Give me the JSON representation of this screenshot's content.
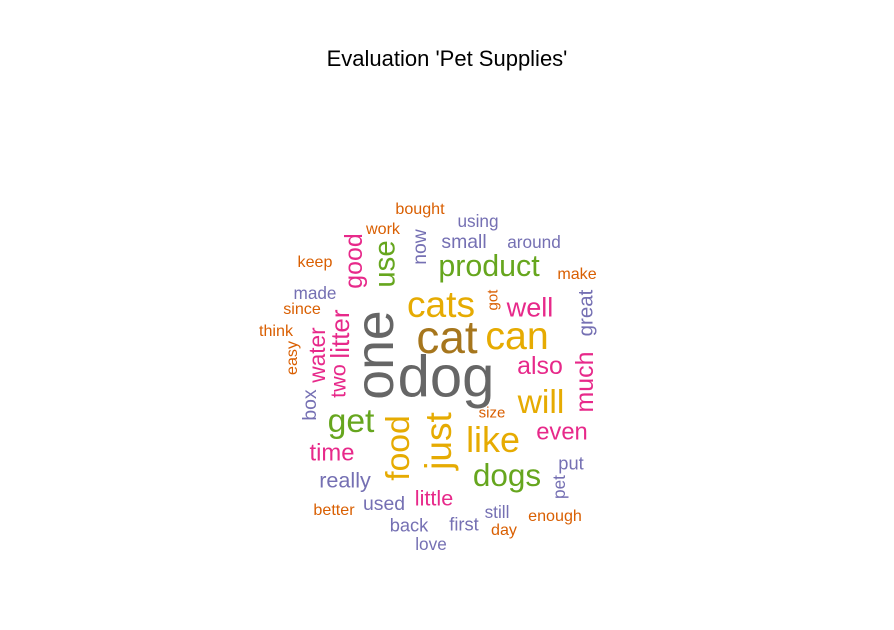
{
  "chart_data": {
    "type": "wordcloud",
    "title": "Evaluation 'Pet Supplies'",
    "palette": {
      "gray": "#666666",
      "brown": "#a6761d",
      "gold": "#e6ab02",
      "green": "#66a61e",
      "pink": "#e7298a",
      "purple": "#7570b3",
      "orange": "#d95f02"
    },
    "words": [
      {
        "text": "dog",
        "weight": 100,
        "color": "gray"
      },
      {
        "text": "one",
        "weight": 92,
        "color": "gray",
        "rotated": true
      },
      {
        "text": "cat",
        "weight": 78,
        "color": "brown"
      },
      {
        "text": "can",
        "weight": 66,
        "color": "gold"
      },
      {
        "text": "cats",
        "weight": 62,
        "color": "gold"
      },
      {
        "text": "just",
        "weight": 62,
        "color": "gold",
        "rotated": true
      },
      {
        "text": "like",
        "weight": 60,
        "color": "gold"
      },
      {
        "text": "food",
        "weight": 56,
        "color": "gold",
        "rotated": true
      },
      {
        "text": "will",
        "weight": 56,
        "color": "gold"
      },
      {
        "text": "get",
        "weight": 56,
        "color": "green"
      },
      {
        "text": "dogs",
        "weight": 52,
        "color": "green"
      },
      {
        "text": "product",
        "weight": 50,
        "color": "green"
      },
      {
        "text": "use",
        "weight": 48,
        "color": "green",
        "rotated": true
      },
      {
        "text": "well",
        "weight": 44,
        "color": "pink"
      },
      {
        "text": "litter",
        "weight": 42,
        "color": "pink",
        "rotated": true
      },
      {
        "text": "good",
        "weight": 40,
        "color": "pink",
        "rotated": true
      },
      {
        "text": "also",
        "weight": 40,
        "color": "pink"
      },
      {
        "text": "much",
        "weight": 40,
        "color": "pink",
        "rotated": true
      },
      {
        "text": "even",
        "weight": 38,
        "color": "pink"
      },
      {
        "text": "time",
        "weight": 38,
        "color": "pink"
      },
      {
        "text": "water",
        "weight": 36,
        "color": "pink",
        "rotated": true
      },
      {
        "text": "two",
        "weight": 34,
        "color": "pink",
        "rotated": true
      },
      {
        "text": "little",
        "weight": 34,
        "color": "pink"
      },
      {
        "text": "really",
        "weight": 34,
        "color": "purple"
      },
      {
        "text": "great",
        "weight": 32,
        "color": "purple",
        "rotated": true
      },
      {
        "text": "small",
        "weight": 30,
        "color": "purple"
      },
      {
        "text": "now",
        "weight": 30,
        "color": "purple",
        "rotated": true
      },
      {
        "text": "box",
        "weight": 30,
        "color": "purple",
        "rotated": true
      },
      {
        "text": "used",
        "weight": 30,
        "color": "purple"
      },
      {
        "text": "put",
        "weight": 28,
        "color": "purple"
      },
      {
        "text": "back",
        "weight": 28,
        "color": "purple"
      },
      {
        "text": "first",
        "weight": 28,
        "color": "purple"
      },
      {
        "text": "around",
        "weight": 26,
        "color": "purple"
      },
      {
        "text": "using",
        "weight": 26,
        "color": "purple"
      },
      {
        "text": "made",
        "weight": 26,
        "color": "purple"
      },
      {
        "text": "still",
        "weight": 26,
        "color": "purple"
      },
      {
        "text": "pet",
        "weight": 26,
        "color": "purple",
        "rotated": true
      },
      {
        "text": "love",
        "weight": 26,
        "color": "purple"
      },
      {
        "text": "bought",
        "weight": 24,
        "color": "orange"
      },
      {
        "text": "work",
        "weight": 24,
        "color": "orange"
      },
      {
        "text": "keep",
        "weight": 24,
        "color": "orange"
      },
      {
        "text": "make",
        "weight": 24,
        "color": "orange"
      },
      {
        "text": "since",
        "weight": 24,
        "color": "orange"
      },
      {
        "text": "think",
        "weight": 24,
        "color": "orange"
      },
      {
        "text": "easy",
        "weight": 24,
        "color": "orange",
        "rotated": true
      },
      {
        "text": "got",
        "weight": 22,
        "color": "orange",
        "rotated": true
      },
      {
        "text": "size",
        "weight": 22,
        "color": "orange"
      },
      {
        "text": "better",
        "weight": 24,
        "color": "orange"
      },
      {
        "text": "enough",
        "weight": 24,
        "color": "orange"
      },
      {
        "text": "day",
        "weight": 24,
        "color": "orange"
      }
    ]
  }
}
